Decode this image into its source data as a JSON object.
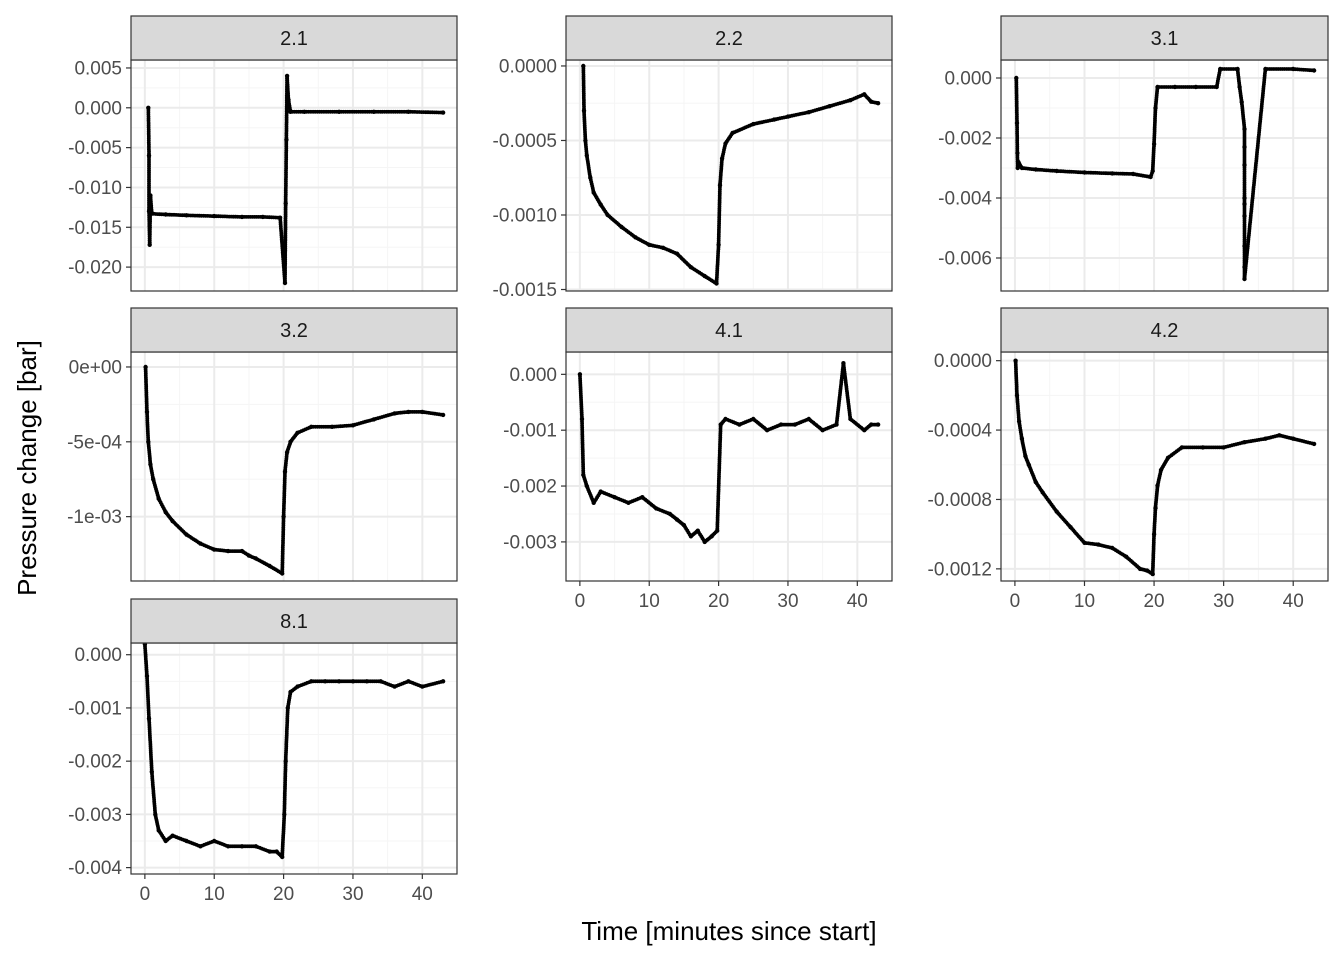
{
  "figure": {
    "xlabel": "Time [minutes since start]",
    "ylabel": "Pressure change [bar]"
  },
  "style": {
    "strip_fill": "#d9d9d9",
    "panel_border": "#333333",
    "grid_major": "#ebebeb",
    "grid_minor": "#f5f5f5",
    "point_color": "#000000"
  },
  "chart_data": [
    {
      "type": "scatter",
      "panel": "2.1",
      "xlim": [
        -2,
        45
      ],
      "ylim": [
        -0.023,
        0.006
      ],
      "xticks": [
        0,
        10,
        20,
        30,
        40
      ],
      "xtick_labels": [
        "0",
        "10",
        "20",
        "30",
        "40"
      ],
      "yticks": [
        0.005,
        0,
        -0.005,
        -0.01,
        -0.015,
        -0.02
      ],
      "ytick_labels": [
        "0.005",
        "0.000",
        "-0.005",
        "-0.010",
        "-0.015",
        "-0.020"
      ],
      "show_x_axis": false,
      "x": [
        0.5,
        0.6,
        0.6,
        0.7,
        0.8,
        1,
        3,
        6,
        10,
        14,
        17,
        19.5,
        20.2,
        20.3,
        20.4,
        20.5,
        20.7,
        21,
        23,
        28,
        33,
        38,
        43
      ],
      "y": [
        0,
        -0.006,
        -0.013,
        -0.0172,
        -0.011,
        -0.0133,
        -0.0134,
        -0.0135,
        -0.0136,
        -0.0137,
        -0.0137,
        -0.0138,
        -0.022,
        -0.012,
        -0.004,
        0.004,
        0.001,
        -0.0005,
        -0.0005,
        -0.0005,
        -0.0005,
        -0.0005,
        -0.0006
      ]
    },
    {
      "type": "scatter",
      "panel": "2.2",
      "xlim": [
        -2,
        45
      ],
      "ylim": [
        -0.00151,
        4e-05
      ],
      "xticks": [
        0,
        10,
        20,
        30,
        40
      ],
      "xtick_labels": [
        "0",
        "10",
        "20",
        "30",
        "40"
      ],
      "yticks": [
        0,
        -0.0005,
        -0.001,
        -0.0015
      ],
      "ytick_labels": [
        "0.0000",
        "-0.0005",
        "-0.0010",
        "-0.0015"
      ],
      "show_x_axis": false,
      "x": [
        0.5,
        0.6,
        0.8,
        1,
        1.5,
        2,
        3,
        4,
        6,
        8,
        10,
        12,
        14,
        16,
        18,
        19.7,
        20,
        20.2,
        20.5,
        21,
        22,
        25,
        28,
        30,
        33,
        36,
        39,
        41,
        42,
        43
      ],
      "y": [
        0,
        -0.0003,
        -0.0005,
        -0.0006,
        -0.00075,
        -0.00085,
        -0.00093,
        -0.001,
        -0.00108,
        -0.00115,
        -0.0012,
        -0.00122,
        -0.00126,
        -0.00135,
        -0.00141,
        -0.00146,
        -0.0012,
        -0.0008,
        -0.00062,
        -0.00052,
        -0.00045,
        -0.00039,
        -0.00036,
        -0.00034,
        -0.00031,
        -0.00027,
        -0.00023,
        -0.00019,
        -0.00024,
        -0.00025
      ]
    },
    {
      "type": "scatter",
      "panel": "3.1",
      "xlim": [
        -2,
        45
      ],
      "ylim": [
        -0.0071,
        0.0006
      ],
      "xticks": [
        0,
        10,
        20,
        30,
        40
      ],
      "xtick_labels": [
        "0",
        "10",
        "20",
        "30",
        "40"
      ],
      "yticks": [
        0,
        -0.002,
        -0.004,
        -0.006
      ],
      "ytick_labels": [
        "0.000",
        "-0.002",
        "-0.004",
        "-0.006"
      ],
      "show_x_axis": false,
      "x": [
        0.2,
        0.3,
        0.35,
        0.4,
        0.5,
        1,
        3,
        6,
        10,
        14,
        17,
        19.5,
        19.8,
        20,
        20.2,
        20.5,
        23,
        26,
        29,
        29.5,
        32,
        32.3,
        32.6,
        33,
        33,
        33,
        33,
        33,
        33,
        33,
        33,
        33,
        36,
        40,
        43
      ],
      "y": [
        0,
        -0.0015,
        -0.0025,
        -0.003,
        -0.0028,
        -0.003,
        -0.00305,
        -0.0031,
        -0.00315,
        -0.00318,
        -0.0032,
        -0.0033,
        -0.0031,
        -0.0022,
        -0.001,
        -0.0003,
        -0.0003,
        -0.0003,
        -0.0003,
        0.0003,
        0.0003,
        -0.0003,
        -0.0008,
        -0.0017,
        -0.0023,
        -0.0029,
        -0.004,
        -0.0042,
        -0.0046,
        -0.0056,
        -0.0063,
        -0.0067,
        0.0003,
        0.0003,
        0.00025
      ]
    },
    {
      "type": "scatter",
      "panel": "3.2",
      "xlim": [
        -2,
        45
      ],
      "ylim": [
        -0.00143,
        0.0001
      ],
      "xticks": [
        0,
        10,
        20,
        30,
        40
      ],
      "xtick_labels": [
        "0",
        "10",
        "20",
        "30",
        "40"
      ],
      "yticks": [
        0,
        -0.0005,
        -0.001
      ],
      "ytick_labels": [
        "0e+00",
        "-5e-04",
        "-1e-03"
      ],
      "show_x_axis": false,
      "x": [
        0.1,
        0.3,
        0.5,
        0.8,
        1.2,
        2,
        3,
        4,
        6,
        8,
        10,
        12,
        14,
        15,
        16,
        18,
        19.8,
        20,
        20.2,
        20.5,
        21,
        22,
        24,
        27,
        30,
        33,
        36,
        38,
        40,
        43
      ],
      "y": [
        0,
        -0.0003,
        -0.0005,
        -0.00065,
        -0.00075,
        -0.00088,
        -0.00097,
        -0.00103,
        -0.00112,
        -0.00118,
        -0.00122,
        -0.00123,
        -0.00123,
        -0.00126,
        -0.00128,
        -0.00133,
        -0.00138,
        -0.001,
        -0.0007,
        -0.00057,
        -0.0005,
        -0.00044,
        -0.0004,
        -0.0004,
        -0.00039,
        -0.00035,
        -0.00031,
        -0.0003,
        -0.0003,
        -0.00032
      ]
    },
    {
      "type": "scatter",
      "panel": "4.1",
      "xlim": [
        -2,
        45
      ],
      "ylim": [
        -0.0037,
        0.0004
      ],
      "xticks": [
        0,
        10,
        20,
        30,
        40
      ],
      "xtick_labels": [
        "0",
        "10",
        "20",
        "30",
        "40"
      ],
      "yticks": [
        0,
        -0.001,
        -0.002,
        -0.003
      ],
      "ytick_labels": [
        "0.000",
        "-0.001",
        "-0.002",
        "-0.003"
      ],
      "show_x_axis": true,
      "x": [
        0,
        0.3,
        0.5,
        1,
        2,
        3,
        5,
        7,
        9,
        11,
        13,
        14,
        15,
        16,
        17,
        18,
        19,
        19.8,
        20.3,
        21,
        23,
        25,
        27,
        29,
        31,
        33,
        35,
        37,
        38,
        39,
        41,
        42,
        43
      ],
      "y": [
        0,
        -0.0008,
        -0.0018,
        -0.002,
        -0.0023,
        -0.0021,
        -0.0022,
        -0.0023,
        -0.0022,
        -0.0024,
        -0.0025,
        -0.0026,
        -0.0027,
        -0.0029,
        -0.0028,
        -0.003,
        -0.0029,
        -0.0028,
        -0.0009,
        -0.0008,
        -0.0009,
        -0.0008,
        -0.001,
        -0.0009,
        -0.0009,
        -0.0008,
        -0.001,
        -0.0009,
        0.0002,
        -0.0008,
        -0.001,
        -0.0009,
        -0.0009
      ]
    },
    {
      "type": "scatter",
      "panel": "4.2",
      "xlim": [
        -2,
        45
      ],
      "ylim": [
        -0.00127,
        5e-05
      ],
      "xticks": [
        0,
        10,
        20,
        30,
        40
      ],
      "xtick_labels": [
        "0",
        "10",
        "20",
        "30",
        "40"
      ],
      "yticks": [
        0,
        -0.0004,
        -0.0008,
        -0.0012
      ],
      "ytick_labels": [
        "0.0000",
        "-0.0004",
        "-0.0008",
        "-0.0012"
      ],
      "show_x_axis": true,
      "x": [
        0.1,
        0.3,
        0.6,
        1,
        1.5,
        2,
        3,
        4,
        6,
        8,
        10,
        12,
        14,
        16,
        18,
        19,
        19.8,
        20,
        20.2,
        20.5,
        21,
        22,
        24,
        27,
        30,
        33,
        36,
        38,
        40,
        43
      ],
      "y": [
        0,
        -0.0002,
        -0.00035,
        -0.00045,
        -0.00055,
        -0.0006,
        -0.0007,
        -0.00076,
        -0.00087,
        -0.00096,
        -0.00105,
        -0.00106,
        -0.00108,
        -0.00113,
        -0.0012,
        -0.00121,
        -0.00123,
        -0.001,
        -0.00085,
        -0.00072,
        -0.00063,
        -0.00056,
        -0.0005,
        -0.0005,
        -0.0005,
        -0.00047,
        -0.00045,
        -0.00043,
        -0.00045,
        -0.00048
      ]
    },
    {
      "type": "scatter",
      "panel": "8.1",
      "xlim": [
        -2,
        45
      ],
      "ylim": [
        -0.00412,
        0.00022
      ],
      "xticks": [
        0,
        10,
        20,
        30,
        40
      ],
      "xtick_labels": [
        "0",
        "10",
        "20",
        "30",
        "40"
      ],
      "yticks": [
        0,
        -0.001,
        -0.002,
        -0.003,
        -0.004
      ],
      "ytick_labels": [
        "0.000",
        "-0.001",
        "-0.002",
        "-0.003",
        "-0.004"
      ],
      "show_x_axis": true,
      "x": [
        0,
        0.3,
        0.6,
        1,
        1.5,
        2,
        3,
        4,
        6,
        8,
        10,
        12,
        14,
        16,
        18,
        19,
        19.8,
        20.1,
        20.3,
        20.6,
        21,
        22,
        24,
        26,
        28,
        30,
        32,
        34,
        36,
        38,
        40,
        43
      ],
      "y": [
        0.0002,
        -0.0004,
        -0.0012,
        -0.0022,
        -0.003,
        -0.0033,
        -0.0035,
        -0.0034,
        -0.0035,
        -0.0036,
        -0.0035,
        -0.0036,
        -0.0036,
        -0.0036,
        -0.0037,
        -0.0037,
        -0.0038,
        -0.003,
        -0.002,
        -0.001,
        -0.0007,
        -0.0006,
        -0.0005,
        -0.0005,
        -0.0005,
        -0.0005,
        -0.0005,
        -0.0005,
        -0.0006,
        -0.0005,
        -0.0006,
        -0.0005
      ]
    }
  ]
}
